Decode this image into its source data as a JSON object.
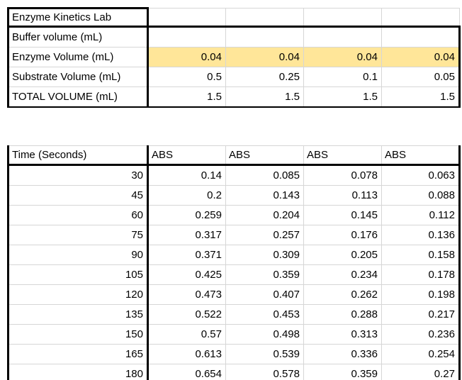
{
  "colors": {
    "highlight": "#FFE699",
    "grid_line": "#D6D6D6",
    "border": "#000000"
  },
  "top_table": {
    "rows": [
      {
        "label": "Enzyme Kinetics Lab",
        "v1": "",
        "v2": "",
        "v3": "",
        "v4": ""
      },
      {
        "label": "Buffer volume (mL)",
        "v1": "",
        "v2": "",
        "v3": "",
        "v4": ""
      },
      {
        "label": "Enzyme Volume (mL)",
        "v1": "0.04",
        "v2": "0.04",
        "v3": "0.04",
        "v4": "0.04",
        "highlight": true
      },
      {
        "label": "Substrate Volume (mL)",
        "v1": "0.5",
        "v2": "0.25",
        "v3": "0.1",
        "v4": "0.05"
      },
      {
        "label": "TOTAL VOLUME (mL)",
        "v1": "1.5",
        "v2": "1.5",
        "v3": "1.5",
        "v4": "1.5"
      }
    ]
  },
  "bottom_table": {
    "headers": {
      "time": "Time (Seconds)",
      "abs1": "ABS",
      "abs2": "ABS",
      "abs3": "ABS",
      "abs4": "ABS"
    },
    "rows": [
      {
        "time": "30",
        "abs1": "0.14",
        "abs2": "0.085",
        "abs3": "0.078",
        "abs4": "0.063"
      },
      {
        "time": "45",
        "abs1": "0.2",
        "abs2": "0.143",
        "abs3": "0.113",
        "abs4": "0.088"
      },
      {
        "time": "60",
        "abs1": "0.259",
        "abs2": "0.204",
        "abs3": "0.145",
        "abs4": "0.112"
      },
      {
        "time": "75",
        "abs1": "0.317",
        "abs2": "0.257",
        "abs3": "0.176",
        "abs4": "0.136"
      },
      {
        "time": "90",
        "abs1": "0.371",
        "abs2": "0.309",
        "abs3": "0.205",
        "abs4": "0.158"
      },
      {
        "time": "105",
        "abs1": "0.425",
        "abs2": "0.359",
        "abs3": "0.234",
        "abs4": "0.178"
      },
      {
        "time": "120",
        "abs1": "0.473",
        "abs2": "0.407",
        "abs3": "0.262",
        "abs4": "0.198"
      },
      {
        "time": "135",
        "abs1": "0.522",
        "abs2": "0.453",
        "abs3": "0.288",
        "abs4": "0.217"
      },
      {
        "time": "150",
        "abs1": "0.57",
        "abs2": "0.498",
        "abs3": "0.313",
        "abs4": "0.236"
      },
      {
        "time": "165",
        "abs1": "0.613",
        "abs2": "0.539",
        "abs3": "0.336",
        "abs4": "0.254"
      },
      {
        "time": "180",
        "abs1": "0.654",
        "abs2": "0.578",
        "abs3": "0.359",
        "abs4": "0.27"
      }
    ]
  }
}
